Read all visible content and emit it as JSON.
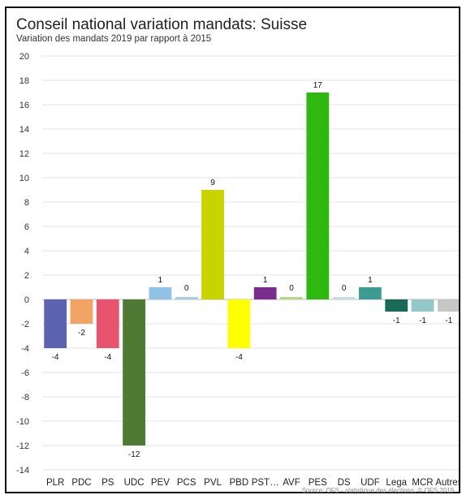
{
  "chart_data": {
    "type": "bar",
    "title": "Conseil national variation mandats: Suisse",
    "subtitle": "Variation des mandats 2019 par rapport à 2015",
    "source": "Source: OFS - statistique des élections, © OFS 2019",
    "xlabel": "",
    "ylabel": "",
    "ylim": [
      -14,
      20
    ],
    "ytick_step": 2,
    "grid": true,
    "legend": "none",
    "categories": [
      "PLR",
      "PDC",
      "PS",
      "UDC",
      "PEV",
      "PCS",
      "PVL",
      "PBD",
      "PST…",
      "AVF",
      "PES",
      "DS",
      "UDF",
      "Lega",
      "MCR",
      "Autres"
    ],
    "values": [
      -4,
      -2,
      -4,
      -12,
      1,
      0,
      9,
      -4,
      1,
      0,
      17,
      0,
      1,
      -1,
      -1,
      -1
    ],
    "colors": [
      "#5c63b0",
      "#f2a464",
      "#e8546e",
      "#4e7a34",
      "#8fc2e6",
      "#a7cde6",
      "#c8d400",
      "#ffff00",
      "#7b2c8f",
      "#b4d986",
      "#2fb80f",
      "#c9dbe6",
      "#3c9c92",
      "#1a6a58",
      "#93c8c9",
      "#c6c6c6"
    ]
  }
}
